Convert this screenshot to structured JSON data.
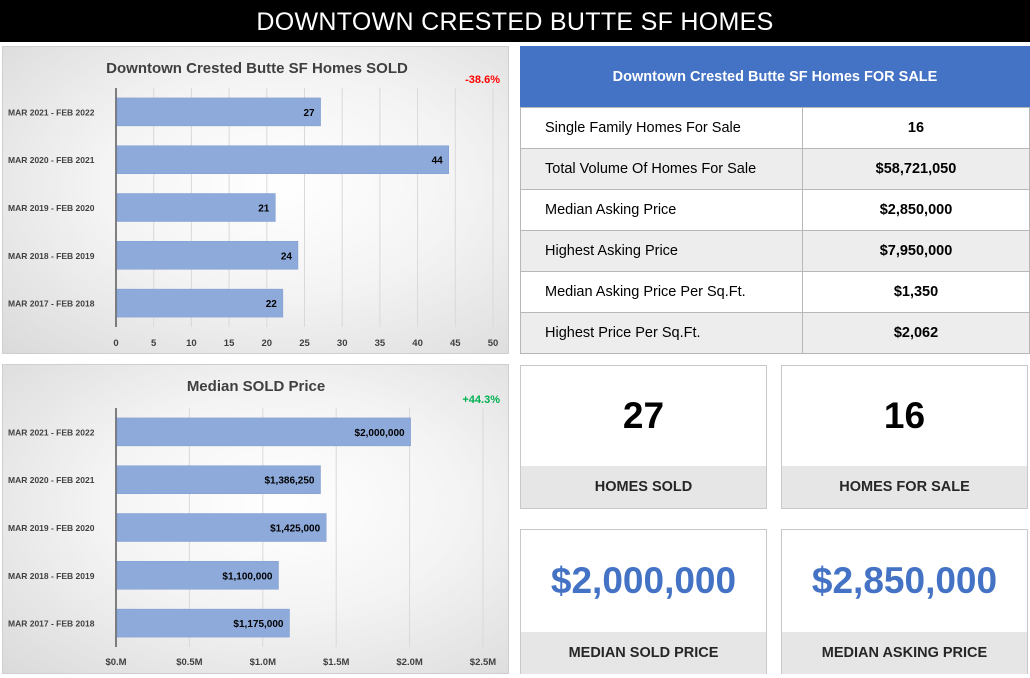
{
  "banner": {
    "title": "DOWNTOWN CRESTED BUTTE SF HOMES"
  },
  "chart_data": [
    {
      "type": "bar",
      "orientation": "horizontal",
      "title": "Downtown Crested Butte SF Homes SOLD",
      "change_label": "-38.6%",
      "change_color": "#ff0000",
      "categories": [
        "MAR 2021 - FEB 2022",
        "MAR 2020 - FEB 2021",
        "MAR 2019 - FEB 2020",
        "MAR 2018 - FEB 2019",
        "MAR 2017 - FEB 2018"
      ],
      "values": [
        27,
        44,
        21,
        24,
        22
      ],
      "value_labels": [
        "27",
        "44",
        "21",
        "24",
        "22"
      ],
      "xlim": [
        0,
        50
      ],
      "ticks": [
        0,
        5,
        10,
        15,
        20,
        25,
        30,
        35,
        40,
        45,
        50
      ],
      "tick_labels": [
        "0",
        "5",
        "10",
        "15",
        "20",
        "25",
        "30",
        "35",
        "40",
        "45",
        "50"
      ],
      "bar_color": "#8eaadb",
      "xlabel": "",
      "ylabel": ""
    },
    {
      "type": "bar",
      "orientation": "horizontal",
      "title": "Median SOLD Price",
      "change_label": "+44.3%",
      "change_color": "#00b050",
      "categories": [
        "MAR 2021 - FEB 2022",
        "MAR 2020 - FEB 2021",
        "MAR 2019 - FEB 2020",
        "MAR 2018 - FEB 2019",
        "MAR 2017 - FEB 2018"
      ],
      "values": [
        2000000,
        1386250,
        1425000,
        1100000,
        1175000
      ],
      "value_labels": [
        "$2,000,000",
        "$1,386,250",
        "$1,425,000",
        "$1,100,000",
        "$1,175,000"
      ],
      "xlim": [
        0,
        2500000
      ],
      "ticks": [
        0,
        500000,
        1000000,
        1500000,
        2000000,
        2500000
      ],
      "tick_labels": [
        "$0.M",
        "$0.5M",
        "$1.0M",
        "$1.5M",
        "$2.0M",
        "$2.5M"
      ],
      "bar_color": "#8eaadb",
      "xlabel": "",
      "ylabel": ""
    }
  ],
  "for_sale": {
    "title": "Downtown Crested Butte SF Homes FOR SALE",
    "rows": [
      {
        "label": "Single Family Homes For Sale",
        "value": "16"
      },
      {
        "label": "Total Volume Of Homes For Sale",
        "value": "$58,721,050"
      },
      {
        "label": "Median Asking Price",
        "value": "$2,850,000"
      },
      {
        "label": "Highest Asking Price",
        "value": "$7,950,000"
      },
      {
        "label": "Median Asking Price Per Sq.Ft.",
        "value": "$1,350"
      },
      {
        "label": "Highest Price Per Sq.Ft.",
        "value": "$2,062"
      }
    ]
  },
  "cards": {
    "homes_sold": {
      "value": "27",
      "caption": "HOMES SOLD"
    },
    "homes_for_sale": {
      "value": "16",
      "caption": "HOMES FOR SALE"
    },
    "median_sold_price": {
      "value": "$2,000,000",
      "caption": "MEDIAN SOLD PRICE"
    },
    "median_asking_price": {
      "value": "$2,850,000",
      "caption": "MEDIAN ASKING PRICE"
    }
  },
  "colors": {
    "accent_blue": "#4472c4",
    "bar_blue": "#8eaadb",
    "negative": "#ff0000",
    "positive": "#00b050"
  }
}
